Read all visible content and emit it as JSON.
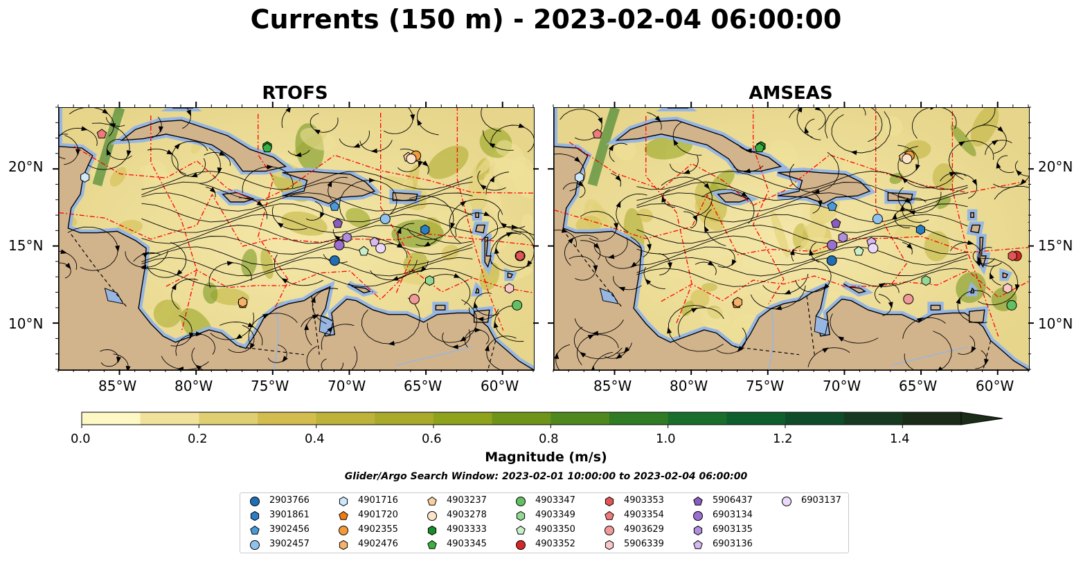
{
  "title": "Currents (150 m) - 2023-02-04 06:00:00",
  "panels": [
    {
      "name": "RTOFS"
    },
    {
      "name": "AMSEAS"
    }
  ],
  "axes": {
    "lon_ticks": [
      "85°W",
      "80°W",
      "75°W",
      "70°W",
      "65°W",
      "60°W"
    ],
    "lat_ticks": [
      "20°N",
      "15°N",
      "10°N"
    ]
  },
  "colorbar": {
    "label": "Magnitude (m/s)",
    "ticks": [
      "0.0",
      "0.2",
      "0.4",
      "0.6",
      "0.8",
      "1.0",
      "1.2",
      "1.4"
    ],
    "range": [
      0,
      1.5
    ],
    "extend": "max",
    "colors": [
      "#fdf8c4",
      "#f0e29a",
      "#e0cf72",
      "#d2bd4e",
      "#bdb23a",
      "#a9a92a",
      "#8fa21c",
      "#6f9419",
      "#4e881e",
      "#2f7c25",
      "#1a6e2c",
      "#0f5e2e",
      "#0f4d2a",
      "#163b22",
      "#1b2d19"
    ]
  },
  "search_window": "Glider/Argo Search Window: 2023-02-01 10:00:00 to 2023-02-04 06:00:00",
  "colors": {
    "land": "#d2b48c",
    "water": "#97b6e1",
    "eez": "#ff0000"
  },
  "legend": {
    "items": [
      {
        "id": "2903766",
        "marker": "circle",
        "color": "#1f6fb4",
        "lon": -71.0,
        "lat": 14.1
      },
      {
        "id": "3901861",
        "marker": "hexagon",
        "color": "#2a7fc4",
        "lon": -65.1,
        "lat": 16.1
      },
      {
        "id": "3902456",
        "marker": "pentagon",
        "color": "#4a9ad8",
        "lon": -71.0,
        "lat": 17.6
      },
      {
        "id": "3902457",
        "marker": "circle",
        "color": "#8ec3ee",
        "lon": -67.7,
        "lat": 16.8
      },
      {
        "id": "4901716",
        "marker": "hexagon",
        "color": "#cfe8fb",
        "lon": -87.3,
        "lat": 19.5
      },
      {
        "id": "4901720",
        "marker": "pentagon",
        "color": "#f07c10",
        "lon": -77.0,
        "lat": 11.3
      },
      {
        "id": "4902355",
        "marker": "circle",
        "color": "#f59a38",
        "lon": -65.7,
        "lat": 20.9
      },
      {
        "id": "4902476",
        "marker": "hexagon",
        "color": "#f6b26b",
        "lon": -77.0,
        "lat": 11.4
      },
      {
        "id": "4903237",
        "marker": "pentagon",
        "color": "#fbcf9f",
        "lon": -66.2,
        "lat": 20.8
      },
      {
        "id": "4903278",
        "marker": "circle",
        "color": "#fde3c8",
        "lon": -66.0,
        "lat": 20.7
      },
      {
        "id": "4903333",
        "marker": "hexagon",
        "color": "#1a8a2a",
        "lon": -75.4,
        "lat": 21.5
      },
      {
        "id": "4903345",
        "marker": "pentagon",
        "color": "#3cb043",
        "lon": -75.4,
        "lat": 21.4
      },
      {
        "id": "4903347",
        "marker": "circle",
        "color": "#62c062",
        "lon": -59.1,
        "lat": 11.2
      },
      {
        "id": "4903349",
        "marker": "hexagon",
        "color": "#95d895",
        "lon": -64.8,
        "lat": 12.8
      },
      {
        "id": "4903350",
        "marker": "pentagon",
        "color": "#c8f0c8",
        "lon": -69.1,
        "lat": 14.7
      },
      {
        "id": "4903352",
        "marker": "circle",
        "color": "#d62728",
        "lon": -58.9,
        "lat": 14.4
      },
      {
        "id": "4903353",
        "marker": "hexagon",
        "color": "#e05555",
        "lon": -58.9,
        "lat": 14.4
      },
      {
        "id": "4903354",
        "marker": "pentagon",
        "color": "#ee7a7a",
        "lon": -86.2,
        "lat": 22.3
      },
      {
        "id": "4903629",
        "marker": "circle",
        "color": "#f29a9a",
        "lon": -65.8,
        "lat": 11.6
      },
      {
        "id": "5906339",
        "marker": "hexagon",
        "color": "#f9c8c8",
        "lon": -59.6,
        "lat": 12.3
      },
      {
        "id": "5906437",
        "marker": "pentagon",
        "color": "#8a5cc0",
        "lon": -70.8,
        "lat": 16.5
      },
      {
        "id": "6903134",
        "marker": "circle",
        "color": "#9b6fd0",
        "lon": -70.7,
        "lat": 15.1
      },
      {
        "id": "6903135",
        "marker": "hexagon",
        "color": "#b08ee0",
        "lon": -70.2,
        "lat": 15.6
      },
      {
        "id": "6903136",
        "marker": "pentagon",
        "color": "#d7b8f0",
        "lon": -68.4,
        "lat": 15.3
      },
      {
        "id": "6903137",
        "marker": "circle",
        "color": "#ecd8fb",
        "lon": -68.0,
        "lat": 14.9
      }
    ]
  }
}
